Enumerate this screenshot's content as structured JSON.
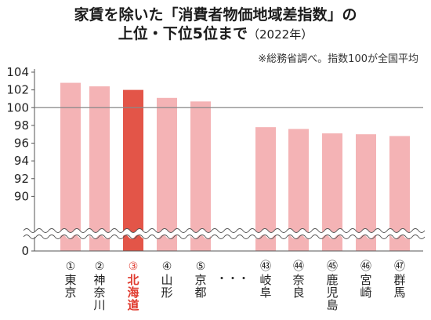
{
  "header": {
    "title_line1": "家賃を除いた「消費者物価地域差指数」の",
    "title_line2_main": "上位・下位5位まで",
    "title_line2_year": "（2022年）",
    "note": "※総務省調べ。指数100が全国平均"
  },
  "colors": {
    "bar": "#f4b3b5",
    "highlight": "#e35548",
    "highlight_text": "#e03a2e",
    "baseline": "#888888"
  },
  "chart_data": {
    "type": "bar",
    "title": "家賃を除いた「消費者物価地域差指数」の上位・下位5位まで（2022年）",
    "ylim": [
      88,
      104
    ],
    "yticks": [
      "104",
      "102",
      "100",
      "98",
      "96",
      "94",
      "92",
      "90"
    ],
    "y_zero_label": "0",
    "axis_break": true,
    "reference_line": 100,
    "ellipsis": "・・・",
    "categories": [
      {
        "rank": "①",
        "name": "東京",
        "value": 102.8,
        "highlight": false
      },
      {
        "rank": "②",
        "name": "神奈川",
        "value": 102.4,
        "highlight": false
      },
      {
        "rank": "③",
        "name": "北海道",
        "value": 102.0,
        "highlight": true
      },
      {
        "rank": "④",
        "name": "山形",
        "value": 101.1,
        "highlight": false
      },
      {
        "rank": "⑤",
        "name": "京都",
        "value": 100.7,
        "highlight": false
      },
      {
        "rank": "㊸",
        "name": "岐阜",
        "value": 97.8,
        "highlight": false
      },
      {
        "rank": "㊹",
        "name": "奈良",
        "value": 97.6,
        "highlight": false
      },
      {
        "rank": "㊺",
        "name": "鹿児島",
        "value": 97.1,
        "highlight": false
      },
      {
        "rank": "㊻",
        "name": "宮崎",
        "value": 97.0,
        "highlight": false
      },
      {
        "rank": "㊼",
        "name": "群馬",
        "value": 96.8,
        "highlight": false
      }
    ]
  }
}
